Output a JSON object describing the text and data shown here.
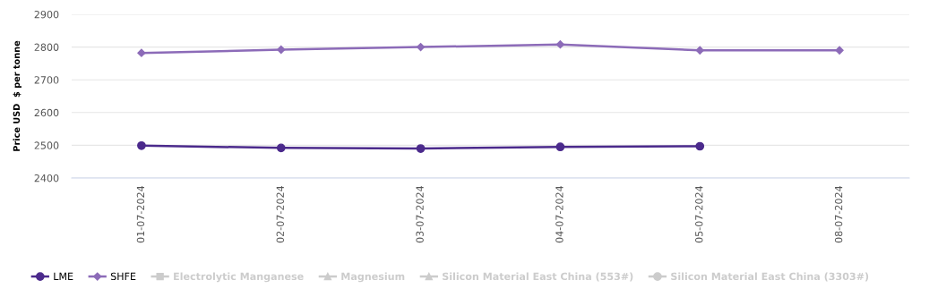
{
  "chart_data": {
    "type": "line",
    "ylabel": "Price USD  $ per tonne",
    "categories": [
      "01-07-2024",
      "02-07-2024",
      "03-07-2024",
      "04-07-2024",
      "05-07-2024",
      "08-07-2024"
    ],
    "series": [
      {
        "name": "LME",
        "color": "#4b2a8c",
        "marker": "circle",
        "values": [
          2499,
          2492,
          2490,
          2495,
          2497,
          null
        ]
      },
      {
        "name": "SHFE",
        "color": "#8c6bb8",
        "marker": "diamond",
        "values": [
          2782,
          2792,
          2800,
          2808,
          2790,
          2790
        ]
      },
      {
        "name": "Electrolytic Manganese",
        "color": "#cccccc",
        "marker": "square",
        "values": [
          null,
          null,
          null,
          null,
          null,
          null
        ]
      },
      {
        "name": "Magnesium",
        "color": "#cccccc",
        "marker": "triangle",
        "values": [
          null,
          null,
          null,
          null,
          null,
          null
        ]
      },
      {
        "name": "Silicon Material East China (553#)",
        "color": "#cccccc",
        "marker": "triangle",
        "values": [
          null,
          null,
          null,
          null,
          null,
          null
        ]
      },
      {
        "name": "Silicon Material East China (3303#)",
        "color": "#cccccc",
        "marker": "circle",
        "values": [
          null,
          null,
          null,
          null,
          null,
          null
        ]
      }
    ],
    "ylim": [
      2400,
      2900
    ],
    "yticks": [
      2400,
      2500,
      2600,
      2700,
      2800,
      2900
    ],
    "grid": "y",
    "legend": "bottom",
    "line_style": "solid"
  }
}
